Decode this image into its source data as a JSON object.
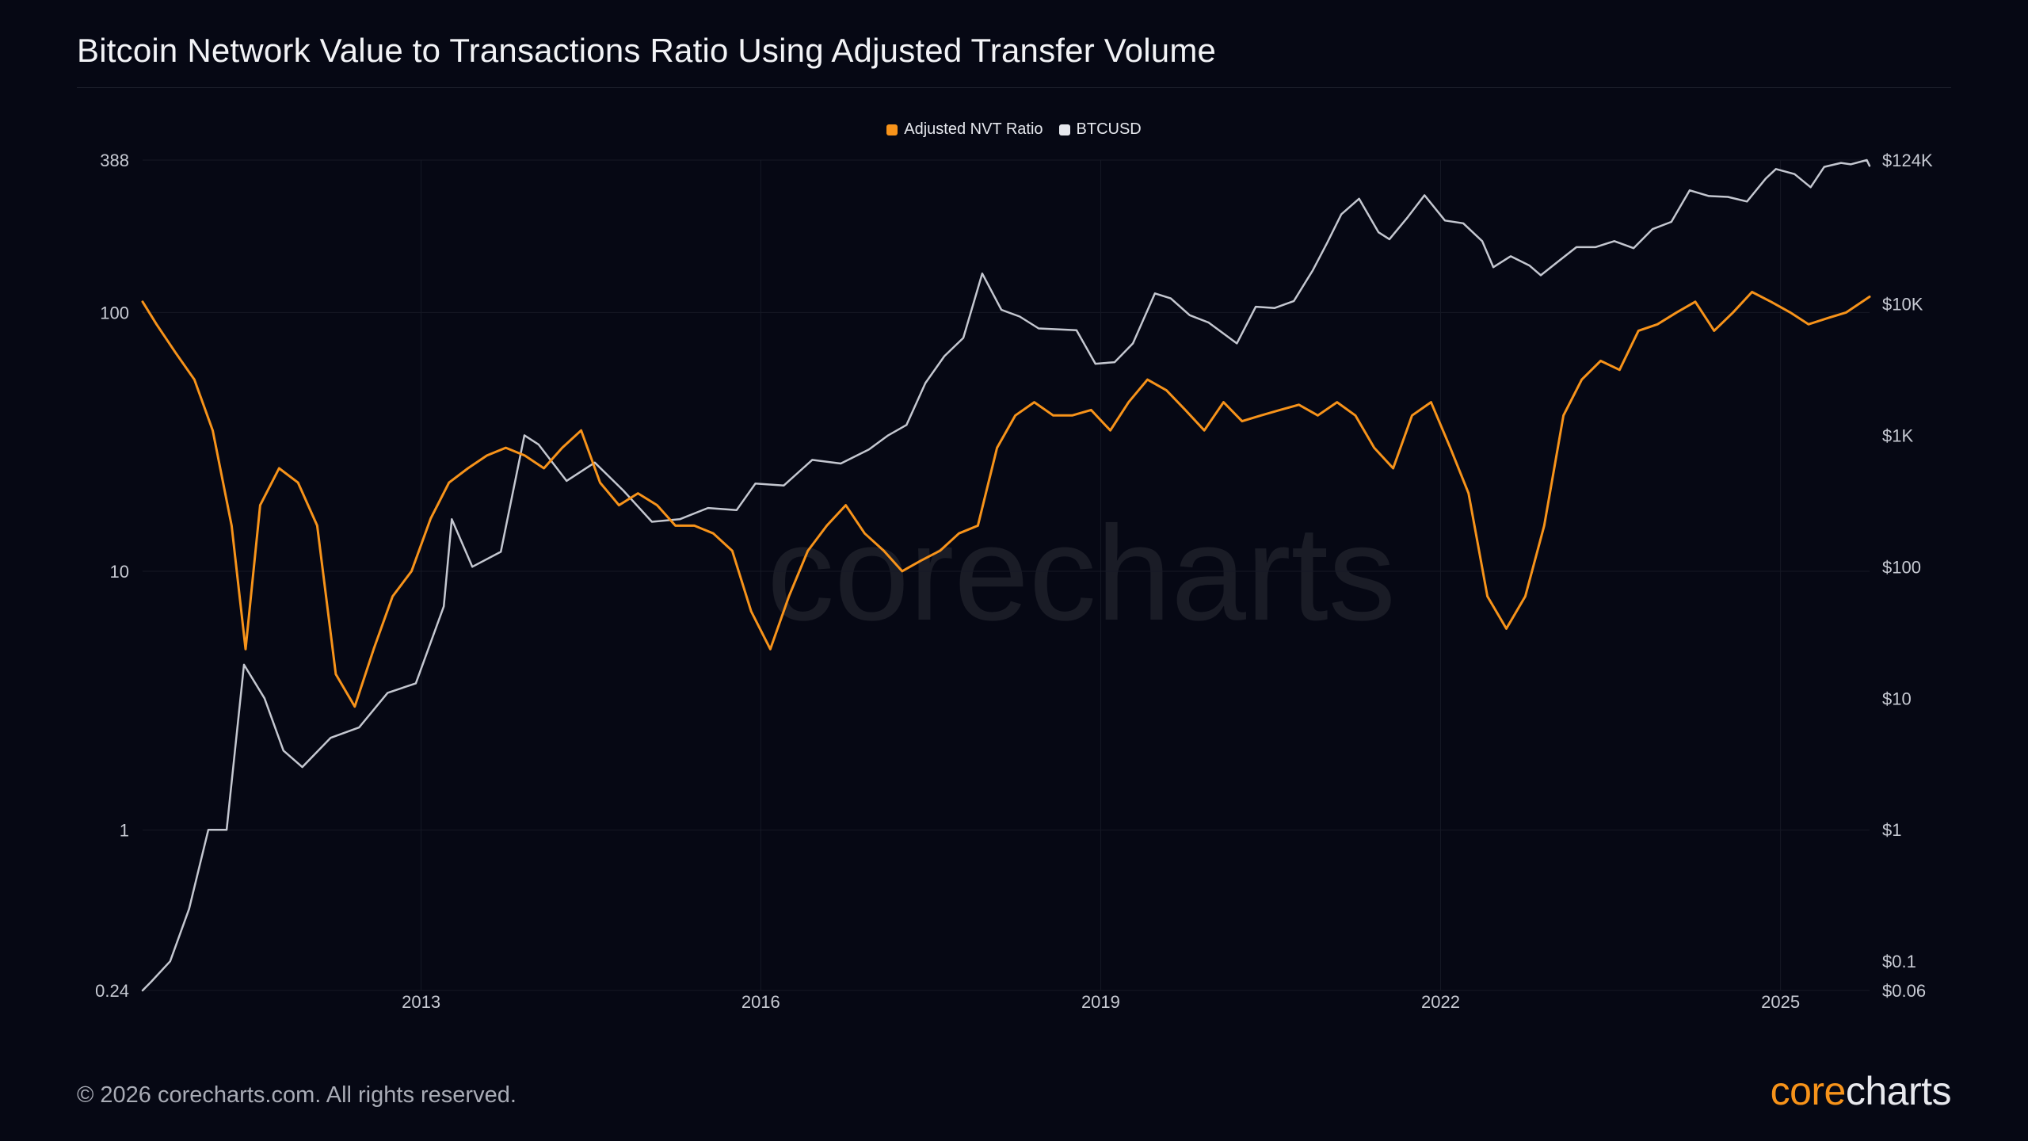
{
  "title": "Bitcoin Network Value to Transactions Ratio Using Adjusted Transfer Volume",
  "footer": {
    "copyright": "© 2026 corecharts.com. All rights reserved.",
    "logo_core": "core",
    "logo_charts": "charts"
  },
  "watermark": "corecharts",
  "colors": {
    "background": "#060814",
    "nvt": "#f7931a",
    "btc": "#c4c7d0",
    "grid": "#161925"
  },
  "chart_data": {
    "type": "line",
    "title": "Bitcoin Network Value to Transactions Ratio Using Adjusted Transfer Volume",
    "legend_position": "top-center",
    "grid": true,
    "x_axis": {
      "type": "date",
      "range": [
        "2010-07-18",
        "2025-10-15"
      ],
      "ticks": [
        "2013",
        "2016",
        "2019",
        "2022",
        "2025"
      ]
    },
    "y_left": {
      "scale": "log",
      "range": [
        0.24,
        388
      ],
      "ticks": [
        "0.24",
        "1",
        "10",
        "100",
        "388"
      ]
    },
    "y_right": {
      "scale": "log",
      "range": [
        0.06,
        124000
      ],
      "ticks": [
        "$0.06",
        "$0.1",
        "$1",
        "$10",
        "$100",
        "$1K",
        "$10K",
        "$124K"
      ]
    },
    "series": [
      {
        "name": "Adjusted NVT Ratio",
        "axis": "left",
        "color": "#f7931a",
        "x": [
          "2010-07-18",
          "2010-09-01",
          "2010-11-01",
          "2011-01-01",
          "2011-03-01",
          "2011-05-01",
          "2011-06-15",
          "2011-08-01",
          "2011-10-01",
          "2011-12-01",
          "2012-02-01",
          "2012-04-01",
          "2012-06-01",
          "2012-08-01",
          "2012-10-01",
          "2012-12-01",
          "2013-02-01",
          "2013-04-01",
          "2013-06-01",
          "2013-08-01",
          "2013-10-01",
          "2013-12-01",
          "2014-02-01",
          "2014-04-01",
          "2014-06-01",
          "2014-08-01",
          "2014-10-01",
          "2014-12-01",
          "2015-02-01",
          "2015-04-01",
          "2015-06-01",
          "2015-08-01",
          "2015-10-01",
          "2015-12-01",
          "2016-02-01",
          "2016-04-01",
          "2016-06-01",
          "2016-08-01",
          "2016-10-01",
          "2016-12-01",
          "2017-02-01",
          "2017-04-01",
          "2017-06-01",
          "2017-08-01",
          "2017-10-01",
          "2017-12-01",
          "2018-02-01",
          "2018-04-01",
          "2018-06-01",
          "2018-08-01",
          "2018-10-01",
          "2018-12-01",
          "2019-02-01",
          "2019-04-01",
          "2019-06-01",
          "2019-08-01",
          "2019-10-01",
          "2019-12-01",
          "2020-02-01",
          "2020-04-01",
          "2020-06-01",
          "2020-08-01",
          "2020-10-01",
          "2020-12-01",
          "2021-02-01",
          "2021-04-01",
          "2021-06-01",
          "2021-08-01",
          "2021-10-01",
          "2021-12-01",
          "2022-02-01",
          "2022-04-01",
          "2022-06-01",
          "2022-08-01",
          "2022-10-01",
          "2022-12-01",
          "2023-02-01",
          "2023-04-01",
          "2023-06-01",
          "2023-08-01",
          "2023-10-01",
          "2023-12-01",
          "2024-02-01",
          "2024-04-01",
          "2024-06-01",
          "2024-08-01",
          "2024-10-01",
          "2024-12-01",
          "2025-02-01",
          "2025-04-01",
          "2025-06-01",
          "2025-08-01",
          "2025-10-15"
        ],
        "values": [
          110,
          90,
          70,
          55,
          35,
          15,
          5,
          18,
          25,
          22,
          15,
          4,
          3,
          5,
          8,
          10,
          16,
          22,
          25,
          28,
          30,
          28,
          25,
          30,
          35,
          22,
          18,
          20,
          18,
          15,
          15,
          14,
          12,
          7,
          5,
          8,
          12,
          15,
          18,
          14,
          12,
          10,
          11,
          12,
          14,
          15,
          30,
          40,
          45,
          40,
          40,
          42,
          35,
          45,
          55,
          50,
          42,
          35,
          45,
          38,
          40,
          42,
          44,
          40,
          45,
          40,
          30,
          25,
          40,
          45,
          30,
          20,
          8,
          6,
          8,
          15,
          40,
          55,
          65,
          60,
          85,
          90,
          100,
          110,
          85,
          100,
          120,
          110,
          100,
          90,
          95,
          100,
          115
        ]
      },
      {
        "name": "BTCUSD",
        "axis": "right",
        "color": "#c4c7d0",
        "x": [
          "2010-07-18",
          "2010-08-15",
          "2010-10-15",
          "2010-12-15",
          "2011-02-15",
          "2011-04-15",
          "2011-06-10",
          "2011-08-15",
          "2011-10-15",
          "2011-12-15",
          "2012-03-15",
          "2012-06-15",
          "2012-09-15",
          "2012-12-15",
          "2013-03-15",
          "2013-04-10",
          "2013-06-15",
          "2013-09-15",
          "2013-11-30",
          "2014-01-15",
          "2014-04-15",
          "2014-07-15",
          "2014-10-15",
          "2015-01-15",
          "2015-04-15",
          "2015-07-15",
          "2015-10-15",
          "2015-12-15",
          "2016-03-15",
          "2016-06-15",
          "2016-09-15",
          "2016-12-15",
          "2017-02-15",
          "2017-04-15",
          "2017-06-15",
          "2017-08-15",
          "2017-10-15",
          "2017-12-15",
          "2018-02-15",
          "2018-04-15",
          "2018-06-15",
          "2018-08-15",
          "2018-10-15",
          "2018-12-15",
          "2019-02-15",
          "2019-04-15",
          "2019-06-25",
          "2019-08-15",
          "2019-10-15",
          "2019-12-15",
          "2020-03-15",
          "2020-05-15",
          "2020-07-15",
          "2020-09-15",
          "2020-11-15",
          "2020-12-31",
          "2021-02-15",
          "2021-04-13",
          "2021-06-15",
          "2021-07-20",
          "2021-09-15",
          "2021-11-10",
          "2022-01-15",
          "2022-03-15",
          "2022-05-15",
          "2022-06-20",
          "2022-08-15",
          "2022-10-15",
          "2022-11-20",
          "2023-01-15",
          "2023-03-15",
          "2023-05-15",
          "2023-07-15",
          "2023-09-15",
          "2023-11-15",
          "2024-01-15",
          "2024-03-14",
          "2024-05-15",
          "2024-07-15",
          "2024-09-15",
          "2024-11-15",
          "2024-12-17",
          "2025-02-15",
          "2025-04-08",
          "2025-05-22",
          "2025-07-15",
          "2025-08-15",
          "2025-10-06",
          "2025-10-15"
        ],
        "values": [
          0.06,
          0.07,
          0.1,
          0.25,
          1,
          1,
          18,
          10,
          4,
          3,
          5,
          6,
          11,
          13,
          50,
          230,
          100,
          130,
          1000,
          850,
          450,
          620,
          380,
          220,
          230,
          280,
          270,
          430,
          415,
          650,
          610,
          780,
          1000,
          1200,
          2500,
          4000,
          5500,
          17000,
          9000,
          8000,
          6500,
          6400,
          6300,
          3500,
          3600,
          5000,
          12000,
          11000,
          8200,
          7200,
          5000,
          9500,
          9300,
          10500,
          18000,
          29000,
          48000,
          63000,
          35000,
          31000,
          45000,
          67000,
          43000,
          41000,
          30000,
          19000,
          23000,
          19500,
          16500,
          21000,
          27000,
          27000,
          30000,
          26500,
          37000,
          42000,
          73000,
          66000,
          65000,
          60000,
          90000,
          106000,
          97000,
          77000,
          110000,
          118000,
          115000,
          124000,
          112000
        ]
      }
    ]
  }
}
